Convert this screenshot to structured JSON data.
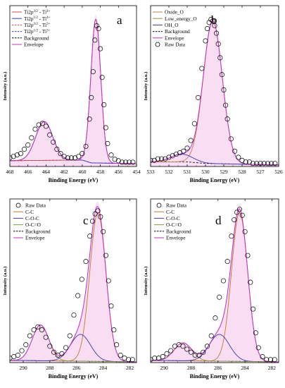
{
  "colors": {
    "ti_main": "#c0504d",
    "ti_sat": "#3a3ab0",
    "oxide": "#c0804d",
    "oh": "#3a3ab0",
    "cc": "#c07830",
    "coc": "#3a3ab0",
    "ocho": "#7a9a3a",
    "background": "#000000",
    "envelope": "#c030c0",
    "raw": "#000000",
    "fill": "#f6d4f0"
  },
  "chart_data": [
    {
      "type": "line",
      "panel": "a",
      "xlabel": "Binding Energy (eV)",
      "ylabel": "Intensity (a.u.)",
      "xlim": [
        468,
        454
      ],
      "xticks": [
        "468",
        "466",
        "464",
        "462",
        "460",
        "458",
        "456",
        "454"
      ],
      "legend": [
        "Ti2p3/2 - Ti4+",
        "Ti2p1/2 - Ti4+",
        "Ti2p3/2 - Ti3+",
        "Ti2p1/2 - Ti3+",
        "Background",
        "Envelope"
      ],
      "legend_rich": [
        {
          "main": "Ti2p",
          "sup": "3/2",
          "rest": " - Ti",
          "sup2": "4+"
        },
        {
          "main": "Ti2p",
          "sup": "1/2",
          "rest": " - Ti",
          "sup2": "4+"
        },
        {
          "main": "Ti2p",
          "sup": "3/2",
          "rest": " - Ti",
          "sup2": "3+"
        },
        {
          "main": "Ti2p",
          "sup": "1/2",
          "rest": " - Ti",
          "sup2": "3+"
        },
        {
          "main": "Background"
        },
        {
          "main": "Envelope"
        }
      ],
      "peaks": [
        {
          "center": 458.5,
          "height": 1.0,
          "width": 0.55
        },
        {
          "center": 464.2,
          "height": 0.27,
          "width": 0.95
        }
      ],
      "background": [
        [
          468,
          0.04
        ],
        [
          460,
          0.045
        ],
        [
          459,
          0.025
        ],
        [
          454,
          0.02
        ]
      ],
      "raw_x": [
        468,
        467.6,
        467.2,
        466.8,
        466.4,
        466.0,
        465.6,
        465.2,
        464.8,
        464.4,
        464.0,
        463.6,
        463.2,
        462.8,
        462.4,
        462.0,
        461.6,
        461.2,
        460.8,
        460.4,
        460.0,
        459.6,
        459.2,
        459.0,
        458.8,
        458.6,
        458.4,
        458.2,
        458.0,
        457.8,
        457.6,
        457.4,
        457.2,
        456.8,
        456.4,
        456.0,
        455.6,
        455.2,
        454.8,
        454.4
      ],
      "raw_y": [
        0.06,
        0.07,
        0.08,
        0.09,
        0.12,
        0.15,
        0.2,
        0.26,
        0.29,
        0.3,
        0.28,
        0.22,
        0.17,
        0.12,
        0.09,
        0.07,
        0.06,
        0.06,
        0.06,
        0.07,
        0.09,
        0.14,
        0.33,
        0.48,
        0.66,
        0.88,
        0.98,
        0.96,
        0.82,
        0.62,
        0.43,
        0.27,
        0.16,
        0.08,
        0.05,
        0.04,
        0.03,
        0.03,
        0.03,
        0.03
      ],
      "ylim": [
        0,
        1.12
      ]
    },
    {
      "type": "line",
      "panel": "b",
      "xlabel": "Binding Energy (eV)",
      "ylabel": "Intensity (a.u.)",
      "xlim": [
        533,
        526
      ],
      "xticks": [
        "533",
        "532",
        "531",
        "530",
        "529",
        "528",
        "527",
        "526"
      ],
      "legend": [
        "Oxide_O",
        "Low_energy_O",
        "OH_O",
        "Background",
        "Envelope",
        "Raw Data"
      ],
      "legend_rich": [
        {
          "main": "Oxide_O"
        },
        {
          "main": "Low_energy_O"
        },
        {
          "main": "OH_O"
        },
        {
          "main": "Background"
        },
        {
          "main": "Envelope"
        },
        {
          "main": "Raw Data"
        }
      ],
      "peaks": [
        {
          "center": 529.6,
          "height": 0.93,
          "width": 0.52
        },
        {
          "center": 531.3,
          "height": 0.05,
          "width": 0.6
        }
      ],
      "background": [
        [
          533,
          0.03
        ],
        [
          531,
          0.03
        ],
        [
          530,
          0.02
        ],
        [
          526,
          0.01
        ]
      ],
      "raw_x": [
        533.0,
        532.8,
        532.6,
        532.4,
        532.2,
        532.0,
        531.8,
        531.6,
        531.4,
        531.2,
        531.0,
        530.8,
        530.6,
        530.4,
        530.2,
        530.0,
        529.9,
        529.8,
        529.7,
        529.6,
        529.5,
        529.4,
        529.3,
        529.2,
        529.1,
        529.0,
        528.9,
        528.8,
        528.6,
        528.4,
        528.2,
        528.0,
        527.8,
        527.6,
        527.4,
        527.2,
        527.0,
        526.8,
        526.6,
        526.4,
        526.2
      ],
      "raw_y": [
        0.04,
        0.04,
        0.05,
        0.05,
        0.05,
        0.06,
        0.07,
        0.08,
        0.09,
        0.1,
        0.12,
        0.17,
        0.28,
        0.45,
        0.64,
        0.82,
        0.9,
        0.94,
        0.96,
        0.95,
        0.92,
        0.87,
        0.8,
        0.71,
        0.6,
        0.5,
        0.4,
        0.31,
        0.18,
        0.1,
        0.06,
        0.04,
        0.03,
        0.03,
        0.02,
        0.02,
        0.02,
        0.02,
        0.02,
        0.02,
        0.02
      ],
      "ylim": [
        0,
        1.05
      ]
    },
    {
      "type": "line",
      "panel": "c",
      "xlabel": "Binding Energy (eV)",
      "ylabel": "Intensity (a.u.)",
      "xlim": [
        291,
        281.5
      ],
      "xticks": [
        "290",
        "288",
        "286",
        "284",
        "282"
      ],
      "xtick_values": [
        290,
        288,
        286,
        284,
        282
      ],
      "legend": [
        "Raw Data",
        "C-C",
        "C-O-C",
        "O-C=O",
        "Background",
        "Envelope"
      ],
      "legend_rich": [
        {
          "main": "Raw Data"
        },
        {
          "main": "C-C"
        },
        {
          "main": "C-O-C"
        },
        {
          "main": "O-C=O"
        },
        {
          "main": "Background"
        },
        {
          "main": "Envelope"
        }
      ],
      "peaks": [
        {
          "center": 284.4,
          "height": 1.0,
          "width": 0.6
        },
        {
          "center": 285.7,
          "height": 0.18,
          "width": 0.75
        },
        {
          "center": 288.7,
          "height": 0.24,
          "width": 0.62
        }
      ],
      "background": [
        [
          291,
          0.015
        ],
        [
          281.5,
          0.005
        ]
      ],
      "raw_x": [
        291.0,
        290.7,
        290.4,
        290.1,
        289.8,
        289.5,
        289.2,
        288.9,
        288.6,
        288.3,
        288.0,
        287.7,
        287.4,
        287.1,
        286.8,
        286.5,
        286.2,
        285.9,
        285.6,
        285.3,
        285.0,
        284.8,
        284.6,
        284.4,
        284.2,
        284.0,
        283.8,
        283.6,
        283.4,
        283.2,
        283.0,
        282.7,
        282.4,
        282.1,
        281.8
      ],
      "raw_y": [
        0.03,
        0.04,
        0.05,
        0.08,
        0.12,
        0.18,
        0.22,
        0.24,
        0.22,
        0.17,
        0.11,
        0.07,
        0.05,
        0.06,
        0.1,
        0.18,
        0.32,
        0.45,
        0.56,
        0.68,
        0.85,
        0.95,
        1.0,
        1.02,
        0.98,
        0.88,
        0.72,
        0.55,
        0.38,
        0.22,
        0.12,
        0.05,
        0.03,
        0.02,
        0.02
      ],
      "ylim": [
        0,
        1.1
      ]
    },
    {
      "type": "line",
      "panel": "d",
      "xlabel": "Binding Energy (eV)",
      "ylabel": "Intensity (a.u.)",
      "xlim": [
        291,
        281.5
      ],
      "xticks": [
        "290",
        "288",
        "286",
        "284",
        "282"
      ],
      "xtick_values": [
        290,
        288,
        286,
        284,
        282
      ],
      "legend": [
        "Raw Data",
        "C-C",
        "C-O-C",
        "O-C=O",
        "Background",
        "Envelope"
      ],
      "legend_rich": [
        {
          "main": "Raw Data"
        },
        {
          "main": "C-C"
        },
        {
          "main": "C-O-C"
        },
        {
          "main": "O-C=O"
        },
        {
          "main": "Background"
        },
        {
          "main": "Envelope"
        }
      ],
      "peaks": [
        {
          "center": 284.4,
          "height": 1.0,
          "width": 0.6
        },
        {
          "center": 285.9,
          "height": 0.18,
          "width": 0.75
        },
        {
          "center": 288.6,
          "height": 0.12,
          "width": 0.65
        }
      ],
      "background": [
        [
          291,
          0.015
        ],
        [
          281.5,
          0.005
        ]
      ],
      "raw_x": [
        291.0,
        290.7,
        290.4,
        290.1,
        289.8,
        289.5,
        289.2,
        288.9,
        288.6,
        288.3,
        288.0,
        287.7,
        287.4,
        287.1,
        286.8,
        286.5,
        286.2,
        285.9,
        285.6,
        285.3,
        285.0,
        284.8,
        284.6,
        284.4,
        284.2,
        284.0,
        283.8,
        283.6,
        283.4,
        283.2,
        283.0,
        282.7,
        282.4,
        282.1,
        281.8
      ],
      "raw_y": [
        0.02,
        0.03,
        0.03,
        0.04,
        0.06,
        0.08,
        0.11,
        0.12,
        0.11,
        0.09,
        0.07,
        0.05,
        0.05,
        0.07,
        0.11,
        0.18,
        0.3,
        0.44,
        0.55,
        0.68,
        0.85,
        0.96,
        1.01,
        1.03,
        0.99,
        0.88,
        0.72,
        0.54,
        0.36,
        0.2,
        0.1,
        0.04,
        0.02,
        0.02,
        0.02
      ],
      "ylim": [
        0,
        1.1
      ]
    }
  ]
}
